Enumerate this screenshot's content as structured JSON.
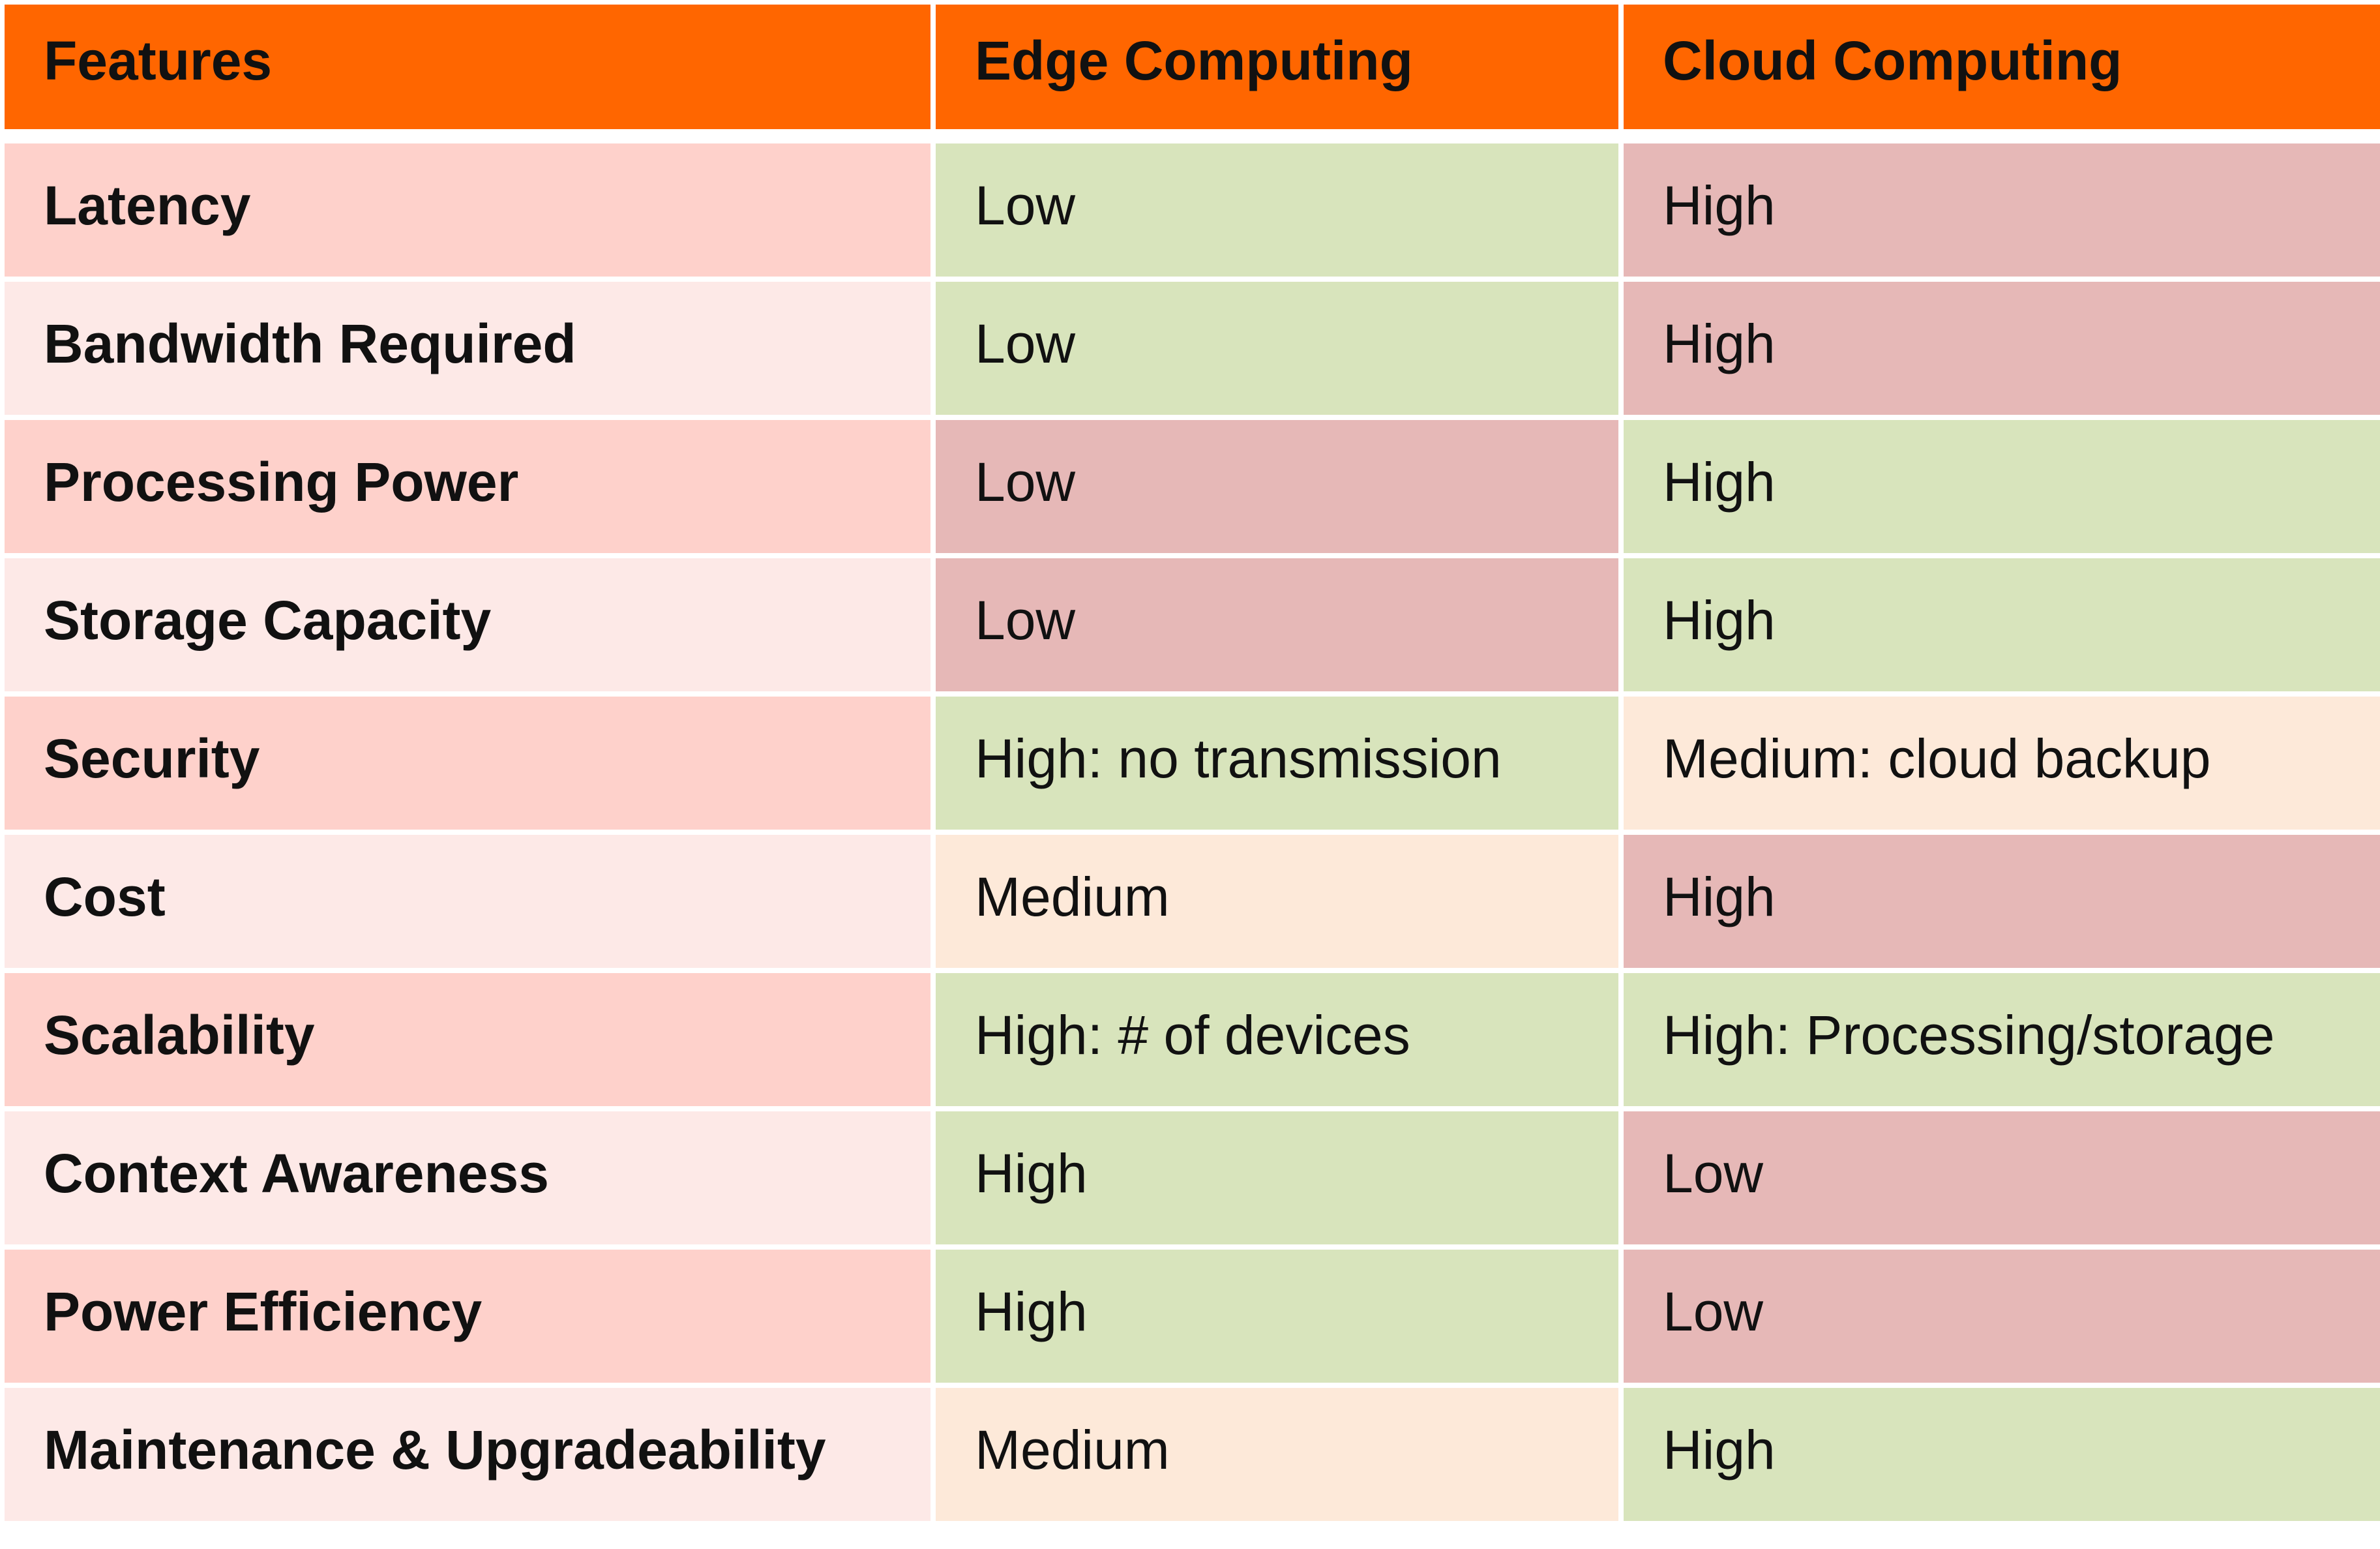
{
  "table": {
    "headers": [
      "Features",
      "Edge Computing",
      "Cloud Computing"
    ],
    "rows": [
      {
        "feature": "Latency",
        "edge": "Low",
        "cloud": "High",
        "edge_rating": "good",
        "cloud_rating": "bad"
      },
      {
        "feature": "Bandwidth Required",
        "edge": "Low",
        "cloud": "High",
        "edge_rating": "good",
        "cloud_rating": "bad"
      },
      {
        "feature": "Processing Power",
        "edge": "Low",
        "cloud": "High",
        "edge_rating": "bad",
        "cloud_rating": "good"
      },
      {
        "feature": "Storage Capacity",
        "edge": "Low",
        "cloud": "High",
        "edge_rating": "bad",
        "cloud_rating": "good"
      },
      {
        "feature": "Security",
        "edge": "High: no transmission",
        "cloud": "Medium: cloud backup",
        "edge_rating": "good",
        "cloud_rating": "mid"
      },
      {
        "feature": "Cost",
        "edge": "Medium",
        "cloud": "High",
        "edge_rating": "mid",
        "cloud_rating": "bad"
      },
      {
        "feature": "Scalability",
        "edge": "High: # of devices",
        "cloud": "High: Processing/storage",
        "edge_rating": "good",
        "cloud_rating": "good"
      },
      {
        "feature": "Context Awareness",
        "edge": "High",
        "cloud": "Low",
        "edge_rating": "good",
        "cloud_rating": "bad"
      },
      {
        "feature": "Power Efficiency",
        "edge": "High",
        "cloud": "Low",
        "edge_rating": "good",
        "cloud_rating": "bad"
      },
      {
        "feature": "Maintenance & Upgradeability",
        "edge": "Medium",
        "cloud": "High",
        "edge_rating": "mid",
        "cloud_rating": "good"
      }
    ]
  },
  "colors": {
    "header": "#ff6600",
    "feature_odd": "#fed1cb",
    "feature_even": "#fde9e7",
    "good": "#d8e4bc",
    "bad": "#e6b8b7",
    "mid": "#fde9d9"
  }
}
